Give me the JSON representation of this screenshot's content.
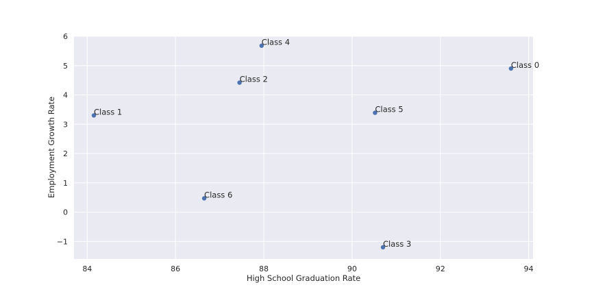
{
  "chart_data": {
    "type": "scatter",
    "title": "",
    "xlabel": "High School Graduation Rate",
    "ylabel": "Employment Growth Rate",
    "xlim": [
      83.7,
      94.1
    ],
    "ylim": [
      -1.6,
      6.0
    ],
    "xticks": [
      84,
      86,
      88,
      90,
      92,
      94
    ],
    "yticks": [
      -1,
      0,
      1,
      2,
      3,
      4,
      5,
      6
    ],
    "xtick_labels": [
      "84",
      "86",
      "88",
      "90",
      "92",
      "94"
    ],
    "ytick_labels": [
      "−1",
      "0",
      "1",
      "2",
      "3",
      "4",
      "5",
      "6"
    ],
    "grid": true,
    "points": [
      {
        "label": "Class 0",
        "x": 93.6,
        "y": 4.9
      },
      {
        "label": "Class 1",
        "x": 84.15,
        "y": 3.3
      },
      {
        "label": "Class 2",
        "x": 87.45,
        "y": 4.42
      },
      {
        "label": "Class 3",
        "x": 90.7,
        "y": -1.2
      },
      {
        "label": "Class 4",
        "x": 87.95,
        "y": 5.68
      },
      {
        "label": "Class 5",
        "x": 90.52,
        "y": 3.39
      },
      {
        "label": "Class 6",
        "x": 86.65,
        "y": 0.47
      }
    ],
    "colors": {
      "background": "#eaeaf2",
      "grid": "#ffffff",
      "marker": "#4c72b0"
    }
  }
}
